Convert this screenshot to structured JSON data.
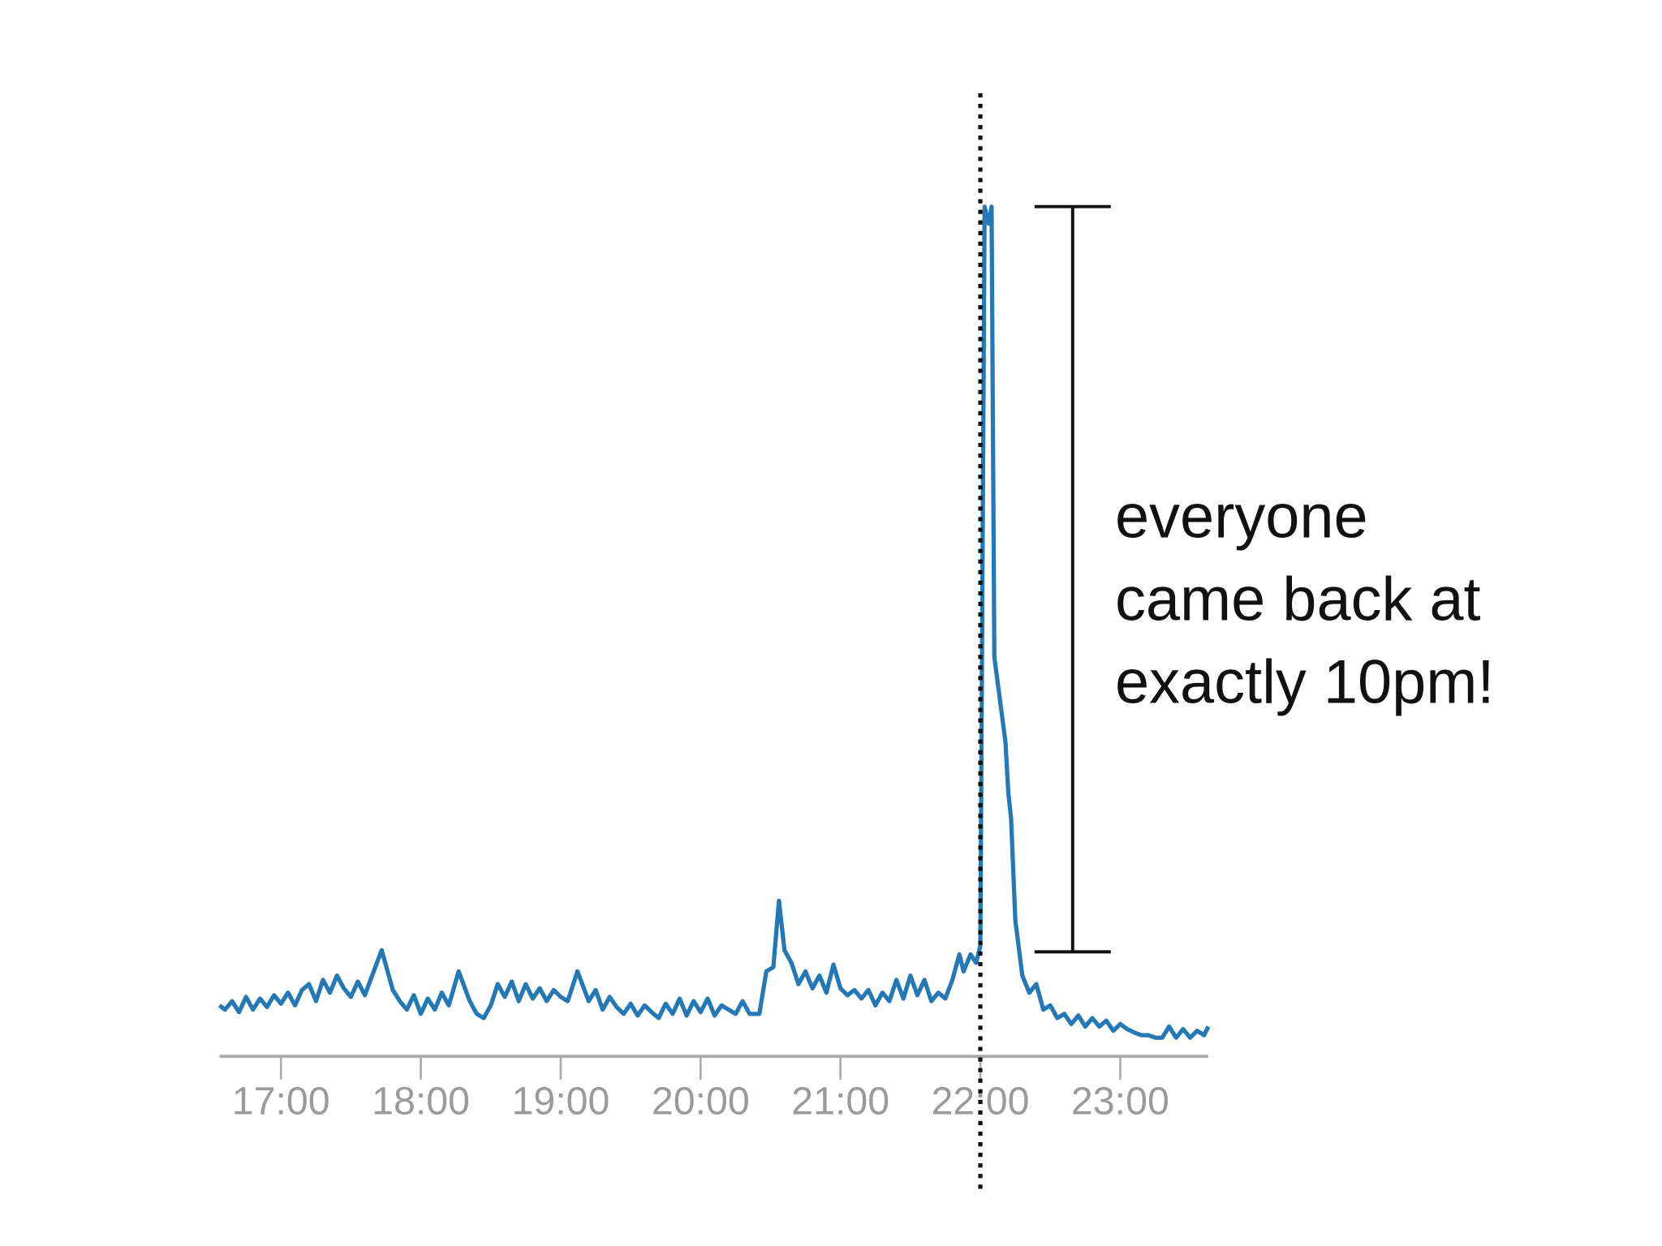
{
  "chart_data": {
    "type": "line",
    "x": [
      16.56,
      16.6,
      16.65,
      16.7,
      16.75,
      16.8,
      16.85,
      16.9,
      16.95,
      17.0,
      17.05,
      17.1,
      17.15,
      17.2,
      17.25,
      17.3,
      17.35,
      17.4,
      17.45,
      17.5,
      17.55,
      17.6,
      17.72,
      17.8,
      17.85,
      17.9,
      17.95,
      18.0,
      18.05,
      18.1,
      18.15,
      18.2,
      18.27,
      18.35,
      18.4,
      18.45,
      18.5,
      18.55,
      18.6,
      18.65,
      18.7,
      18.75,
      18.8,
      18.85,
      18.9,
      18.95,
      19.0,
      19.05,
      19.12,
      19.2,
      19.25,
      19.3,
      19.35,
      19.4,
      19.45,
      19.5,
      19.55,
      19.6,
      19.65,
      19.7,
      19.75,
      19.8,
      19.85,
      19.9,
      19.95,
      20.0,
      20.05,
      20.1,
      20.15,
      20.2,
      20.25,
      20.3,
      20.35,
      20.42,
      20.47,
      20.52,
      20.56,
      20.6,
      20.65,
      20.7,
      20.75,
      20.8,
      20.85,
      20.9,
      20.95,
      21.0,
      21.05,
      21.1,
      21.15,
      21.2,
      21.25,
      21.3,
      21.35,
      21.4,
      21.45,
      21.5,
      21.55,
      21.6,
      21.65,
      21.7,
      21.75,
      21.8,
      21.85,
      21.88,
      21.93,
      21.97,
      22.0,
      22.03,
      22.06,
      22.08,
      22.1,
      22.18,
      22.2,
      22.22,
      22.25,
      22.3,
      22.35,
      22.4,
      22.45,
      22.5,
      22.55,
      22.6,
      22.65,
      22.7,
      22.75,
      22.8,
      22.85,
      22.9,
      22.95,
      23.0,
      23.05,
      23.1,
      23.15,
      23.2,
      23.25,
      23.3,
      23.35,
      23.4,
      23.45,
      23.5,
      23.55,
      23.6,
      23.63
    ],
    "series": [
      {
        "color": "#2378b5",
        "values": [
          6.0,
          5.5,
          6.5,
          5.2,
          7.0,
          5.5,
          6.8,
          5.8,
          7.2,
          6.2,
          7.5,
          6.0,
          7.8,
          8.5,
          6.5,
          9.0,
          7.5,
          9.5,
          8.0,
          7.0,
          8.8,
          7.2,
          12.5,
          7.8,
          6.5,
          5.5,
          7.2,
          5.0,
          6.8,
          5.5,
          7.5,
          6.0,
          10.0,
          6.5,
          5.0,
          4.5,
          6.0,
          8.5,
          7.0,
          8.8,
          6.5,
          8.5,
          6.8,
          8.0,
          6.5,
          7.8,
          7.0,
          6.5,
          10.0,
          6.5,
          7.8,
          5.5,
          7.0,
          5.8,
          5.0,
          6.2,
          4.8,
          6.0,
          5.2,
          4.5,
          6.2,
          5.0,
          6.8,
          4.8,
          6.5,
          5.2,
          6.8,
          4.8,
          6.0,
          5.5,
          5.0,
          6.5,
          5.0,
          5.0,
          10.0,
          10.5,
          18.3,
          12.5,
          11.0,
          8.5,
          10.0,
          8.0,
          9.5,
          7.5,
          10.8,
          8.0,
          7.2,
          7.8,
          6.8,
          7.8,
          6.0,
          7.5,
          6.5,
          9.0,
          6.8,
          9.5,
          7.2,
          9.0,
          6.5,
          7.5,
          6.8,
          9.0,
          12.0,
          10.0,
          12.0,
          11.0,
          13.0,
          100,
          98,
          100,
          47,
          37,
          31,
          28,
          16,
          9.5,
          7.5,
          8.5,
          5.5,
          6.0,
          4.5,
          5.0,
          3.8,
          4.8,
          3.5,
          4.5,
          3.5,
          4.2,
          3.0,
          3.8,
          3.2,
          2.8,
          2.5,
          2.5,
          2.2,
          2.2,
          3.5,
          2.2,
          3.2,
          2.2,
          3.0,
          2.5,
          3.5
        ]
      }
    ],
    "xlim": [
      16.56,
      23.63
    ],
    "ylim": [
      0,
      100
    ],
    "xticks": [
      {
        "value": 17,
        "label": "17:00"
      },
      {
        "value": 18,
        "label": "18:00"
      },
      {
        "value": 19,
        "label": "19:00"
      },
      {
        "value": 20,
        "label": "20:00"
      },
      {
        "value": 21,
        "label": "21:00"
      },
      {
        "value": 22,
        "label": "22:00"
      },
      {
        "value": 23,
        "label": "23:00"
      }
    ],
    "annotation": {
      "lines": [
        "everyone",
        "came back at",
        "exactly 10pm!"
      ],
      "vline": 22,
      "range": [
        12.3,
        100
      ]
    }
  }
}
